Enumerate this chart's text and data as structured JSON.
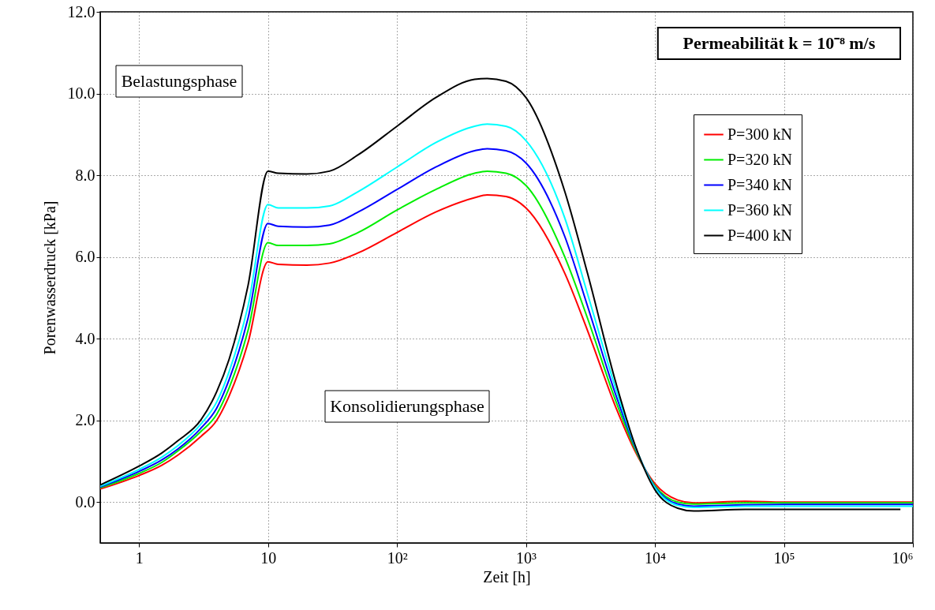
{
  "chart_data": {
    "type": "line",
    "xlabel": "Zeit [h]",
    "ylabel": "Porenwasserdruck [kPa]",
    "log": "x",
    "grid": true,
    "legend": "top right",
    "line_style": "solid",
    "xlim": [
      0.5,
      1000000
    ],
    "ylim": [
      -1,
      12
    ],
    "xticks": [
      1,
      10,
      {
        "value": 100,
        "label": "10²"
      },
      {
        "value": 1000,
        "label": "10³"
      },
      {
        "value": 10000,
        "label": "10⁴"
      },
      {
        "value": 100000,
        "label": "10⁵"
      },
      {
        "value": 1000000,
        "label": "10⁶"
      }
    ],
    "yticks": [
      {
        "value": 0,
        "label": "0.0"
      },
      {
        "value": 2,
        "label": "2.0"
      },
      {
        "value": 4,
        "label": "4.0"
      },
      {
        "value": 6,
        "label": "6.0"
      },
      {
        "value": 8,
        "label": "8.0"
      },
      {
        "value": 10,
        "label": "10.0"
      },
      {
        "value": 12,
        "label": "12.0"
      }
    ],
    "annotations": [
      "Permeabilität k = 10⁻⁸ m/s",
      "Belastungsphase",
      "Konsolidierungsphase"
    ],
    "x": [
      0.5,
      1,
      1.5,
      2,
      3,
      4,
      5,
      7,
      10,
      12,
      20,
      30,
      50,
      100,
      200,
      400,
      500,
      700,
      1000,
      2000,
      3000,
      5000,
      7000,
      10000,
      15000,
      20000,
      50000,
      100000,
      300000,
      1000000
    ],
    "series": [
      {
        "name": "P=300 kN",
        "color": "#ff0000",
        "values": [
          0.32,
          0.65,
          0.9,
          1.15,
          1.6,
          2.0,
          2.6,
          3.9,
          5.88,
          5.82,
          5.8,
          5.85,
          6.1,
          6.6,
          7.1,
          7.45,
          7.52,
          7.48,
          7.2,
          5.6,
          4.2,
          2.3,
          1.25,
          0.45,
          0.05,
          -0.02,
          0.02,
          0.0,
          0.0,
          0.0
        ]
      },
      {
        "name": "P=320 kN",
        "color": "#00ee00",
        "values": [
          0.35,
          0.7,
          0.97,
          1.25,
          1.72,
          2.15,
          2.8,
          4.2,
          6.35,
          6.28,
          6.28,
          6.32,
          6.6,
          7.15,
          7.65,
          8.05,
          8.1,
          8.05,
          7.75,
          6.0,
          4.5,
          2.45,
          1.3,
          0.4,
          0.0,
          -0.05,
          -0.02,
          -0.02,
          -0.02,
          -0.02
        ]
      },
      {
        "name": "P=340 kN",
        "color": "#0000ff",
        "values": [
          0.37,
          0.75,
          1.03,
          1.3,
          1.8,
          2.3,
          3.0,
          4.5,
          6.82,
          6.75,
          6.73,
          6.78,
          7.1,
          7.65,
          8.2,
          8.6,
          8.65,
          8.6,
          8.3,
          6.5,
          4.8,
          2.6,
          1.35,
          0.37,
          -0.05,
          -0.1,
          -0.07,
          -0.06,
          -0.06,
          -0.06
        ]
      },
      {
        "name": "P=360 kN",
        "color": "#00ffff",
        "values": [
          0.39,
          0.8,
          1.1,
          1.38,
          1.9,
          2.45,
          3.2,
          4.8,
          7.28,
          7.2,
          7.2,
          7.25,
          7.6,
          8.2,
          8.8,
          9.2,
          9.25,
          9.2,
          8.85,
          6.95,
          5.1,
          2.75,
          1.38,
          0.35,
          -0.08,
          -0.13,
          -0.1,
          -0.1,
          -0.1,
          -0.1
        ]
      },
      {
        "name": "P=400 kN",
        "color": "#000000",
        "x": [
          0.5,
          1,
          1.5,
          2,
          3,
          4,
          5,
          7,
          10,
          12,
          20,
          30,
          50,
          100,
          200,
          400,
          500,
          700,
          1000,
          2000,
          3000,
          5000,
          7000,
          10000,
          15000,
          20000,
          50000,
          100000,
          300000,
          800000
        ],
        "values": [
          0.42,
          0.88,
          1.2,
          1.5,
          2.0,
          2.7,
          3.5,
          5.3,
          8.1,
          8.05,
          8.03,
          8.1,
          8.5,
          9.2,
          9.9,
          10.35,
          10.37,
          10.3,
          9.9,
          7.6,
          5.6,
          2.9,
          1.4,
          0.3,
          -0.15,
          -0.22,
          -0.18,
          -0.18,
          -0.18,
          -0.18
        ]
      }
    ]
  }
}
